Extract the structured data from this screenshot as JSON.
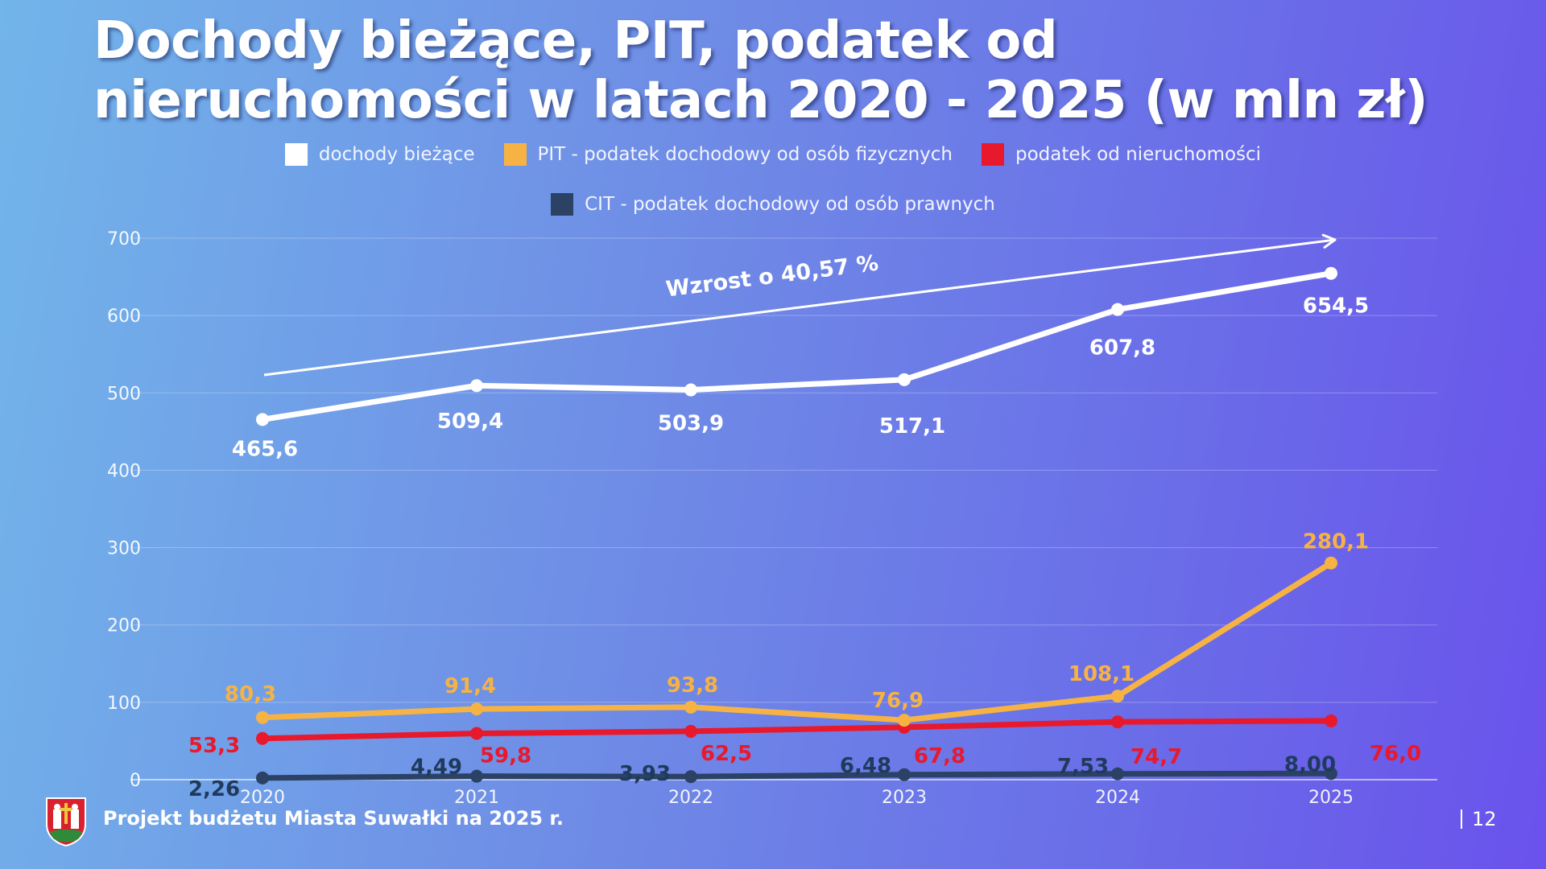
{
  "title": "Dochody bieżące, PIT, podatek od nieruchomości w latach 2020 - 2025 (w mln zł)",
  "footer": "Projekt budżetu Miasta Suwałki na 2025 r.",
  "page_number": "12",
  "annotation": "Wzrost o 40,57 %",
  "colors": {
    "white": "#ffffff",
    "orange": "#f6b343",
    "red": "#e8192c",
    "navy": "#2b4264"
  },
  "chart_data": {
    "type": "line",
    "x": [
      "2020",
      "2021",
      "2022",
      "2023",
      "2024",
      "2025"
    ],
    "ylim": [
      0,
      700
    ],
    "yticks": [
      "0",
      "100",
      "200",
      "300",
      "400",
      "500",
      "600",
      "700"
    ],
    "grid": true,
    "legend_position": "top-center",
    "series": [
      {
        "name": "dochody bieżące",
        "values": [
          465.6,
          509.4,
          503.9,
          517.1,
          607.8,
          654.5
        ],
        "labels": [
          "465,6",
          "509,4",
          "503,9",
          "517,1",
          "607,8",
          "654,5"
        ],
        "color": "#ffffff"
      },
      {
        "name": "PIT - podatek dochodowy od osób fizycznych",
        "values": [
          80.3,
          91.4,
          93.8,
          76.9,
          108.1,
          280.1
        ],
        "labels": [
          "80,3",
          "91,4",
          "93,8",
          "76,9",
          "108,1",
          "280,1"
        ],
        "color": "#f6b343"
      },
      {
        "name": "podatek od nieruchomości",
        "values": [
          53.3,
          59.8,
          62.5,
          67.8,
          74.7,
          76.0
        ],
        "labels": [
          "53,3",
          "59,8",
          "62,5",
          "67,8",
          "74,7",
          "76,0"
        ],
        "color": "#e8192c"
      },
      {
        "name": "CIT - podatek dochodowy od osób prawnych",
        "values": [
          2.26,
          4.49,
          3.93,
          6.48,
          7.53,
          8.0
        ],
        "labels": [
          "2,26",
          "4,49",
          "3,93",
          "6,48",
          "7,53",
          "8,00"
        ],
        "color": "#2b4264"
      }
    ]
  }
}
